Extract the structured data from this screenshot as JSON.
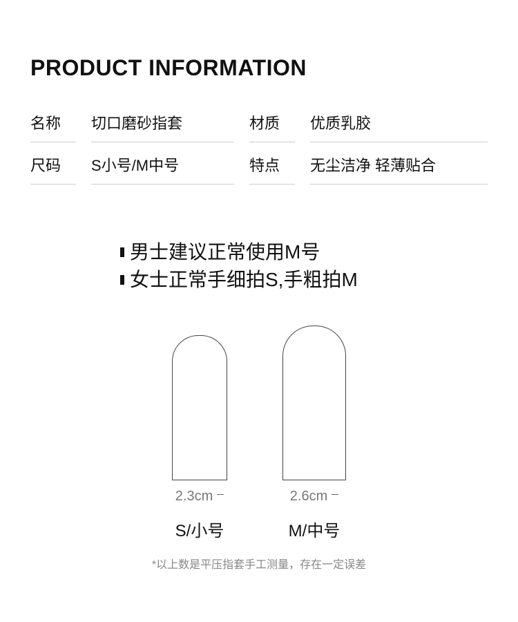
{
  "title": "PRODUCT INFORMATION",
  "info": {
    "row1": {
      "label1": "名称",
      "value1": "切口磨砂指套",
      "label2": "材质",
      "value2": "优质乳胶"
    },
    "row2": {
      "label1": "尺码",
      "value1": "S小号/M中号",
      "label2": "特点",
      "value2": "无尘洁净 轻薄贴合"
    }
  },
  "tips": {
    "line1": "男士建议正常使用M号",
    "line2": "女士正常手细拍S,手粗拍M"
  },
  "sizes": {
    "small": {
      "dim": "2.3cm",
      "name": "S/小号"
    },
    "medium": {
      "dim": "2.6cm",
      "name": "M/中号"
    }
  },
  "footnote": "*以上数是平压指套手工测量，存在一定误差",
  "colors": {
    "text": "#111111",
    "border": "#cccccc",
    "muted": "#888888",
    "shape_stroke": "#444444"
  }
}
